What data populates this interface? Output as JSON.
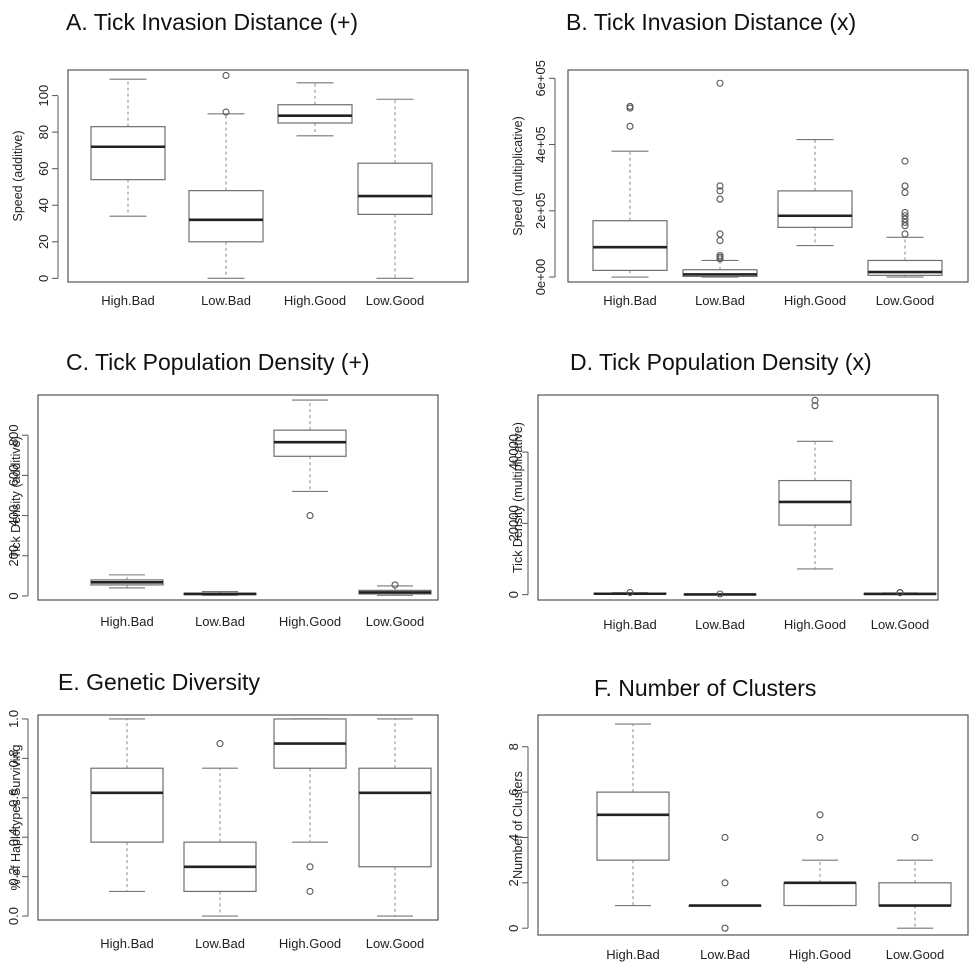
{
  "chart_data": [
    {
      "type": "boxplot",
      "title": "A. Tick Invasion Distance (+)",
      "ylabel": "Speed (additive)",
      "categories": [
        "High.Bad",
        "Low.Bad",
        "High.Good",
        "Low.Good"
      ],
      "yticks": [
        0,
        20,
        40,
        60,
        80,
        100
      ],
      "ytick_labels": [
        "0",
        "20",
        "40",
        "60",
        "80",
        "100"
      ],
      "ylim": [
        -2,
        114
      ],
      "boxes": [
        {
          "lower_whisker": 34,
          "q1": 54,
          "median": 72,
          "q3": 83,
          "upper_whisker": 109,
          "outliers": []
        },
        {
          "lower_whisker": 0,
          "q1": 20,
          "median": 32,
          "q3": 48,
          "upper_whisker": 90,
          "outliers": [
            91,
            111
          ]
        },
        {
          "lower_whisker": 78,
          "q1": 85,
          "median": 89,
          "q3": 95,
          "upper_whisker": 107,
          "outliers": []
        },
        {
          "lower_whisker": 0,
          "q1": 35,
          "median": 45,
          "q3": 63,
          "upper_whisker": 98,
          "outliers": []
        }
      ]
    },
    {
      "type": "boxplot",
      "title": "B. Tick Invasion Distance (x)",
      "ylabel": "Speed (multiplicative)",
      "categories": [
        "High.Bad",
        "Low.Bad",
        "High.Good",
        "Low.Good"
      ],
      "yticks": [
        0,
        200000,
        400000,
        600000
      ],
      "ytick_labels": [
        "0e+00",
        "2e+05",
        "4e+05",
        "6e+05"
      ],
      "ylim": [
        -15000,
        625000
      ],
      "boxes": [
        {
          "lower_whisker": 0,
          "q1": 20000,
          "median": 90000,
          "q3": 170000,
          "upper_whisker": 380000,
          "outliers": [
            455000,
            510000,
            515000
          ]
        },
        {
          "lower_whisker": 0,
          "q1": 2000,
          "median": 8000,
          "q3": 22000,
          "upper_whisker": 50000,
          "outliers": [
            55000,
            60000,
            65000,
            110000,
            130000,
            235000,
            260000,
            275000,
            585000
          ]
        },
        {
          "lower_whisker": 95000,
          "q1": 150000,
          "median": 185000,
          "q3": 260000,
          "upper_whisker": 415000,
          "outliers": []
        },
        {
          "lower_whisker": 0,
          "q1": 5000,
          "median": 15000,
          "q3": 50000,
          "upper_whisker": 120000,
          "outliers": [
            130000,
            155000,
            165000,
            175000,
            185000,
            195000,
            255000,
            275000,
            350000
          ]
        }
      ]
    },
    {
      "type": "boxplot",
      "title": "C. Tick Population Density (+)",
      "ylabel": "Tick Density (additive)",
      "categories": [
        "High.Bad",
        "Low.Bad",
        "High.Good",
        "Low.Good"
      ],
      "yticks": [
        0,
        200,
        400,
        600,
        800
      ],
      "ytick_labels": [
        "0",
        "200",
        "400",
        "600",
        "800"
      ],
      "ylim": [
        -20,
        1000
      ],
      "boxes": [
        {
          "lower_whisker": 40,
          "q1": 55,
          "median": 68,
          "q3": 80,
          "upper_whisker": 105,
          "outliers": []
        },
        {
          "lower_whisker": 3,
          "q1": 7,
          "median": 10,
          "q3": 14,
          "upper_whisker": 22,
          "outliers": []
        },
        {
          "lower_whisker": 520,
          "q1": 695,
          "median": 765,
          "q3": 825,
          "upper_whisker": 975,
          "outliers": [
            400
          ]
        },
        {
          "lower_whisker": 3,
          "q1": 10,
          "median": 18,
          "q3": 28,
          "upper_whisker": 50,
          "outliers": [
            55
          ]
        }
      ]
    },
    {
      "type": "boxplot",
      "title": "D. Tick Population Density (x)",
      "ylabel": "Tick Density (multiplicative)",
      "categories": [
        "High.Bad",
        "Low.Bad",
        "High.Good",
        "Low.Good"
      ],
      "yticks": [
        0,
        20000,
        40000
      ],
      "ytick_labels": [
        "0",
        "20000",
        "40000"
      ],
      "ylim": [
        -1500,
        56000
      ],
      "boxes": [
        {
          "lower_whisker": 80,
          "q1": 150,
          "median": 250,
          "q3": 400,
          "upper_whisker": 550,
          "outliers": [
            600
          ]
        },
        {
          "lower_whisker": 20,
          "q1": 40,
          "median": 60,
          "q3": 90,
          "upper_whisker": 150,
          "outliers": [
            180
          ]
        },
        {
          "lower_whisker": 7200,
          "q1": 19500,
          "median": 26000,
          "q3": 32000,
          "upper_whisker": 43000,
          "outliers": [
            53000,
            54500
          ]
        },
        {
          "lower_whisker": 50,
          "q1": 100,
          "median": 200,
          "q3": 350,
          "upper_whisker": 500,
          "outliers": [
            550,
            600
          ]
        }
      ]
    },
    {
      "type": "boxplot",
      "title": "E. Genetic Diversity",
      "ylabel": "% of Haplotypes Surviving",
      "categories": [
        "High.Bad",
        "Low.Bad",
        "High.Good",
        "Low.Good"
      ],
      "yticks": [
        0.0,
        0.2,
        0.4,
        0.6,
        0.8,
        1.0
      ],
      "ytick_labels": [
        "0.0",
        "0.2",
        "0.4",
        "0.6",
        "0.8",
        "1.0"
      ],
      "ylim": [
        -0.02,
        1.02
      ],
      "boxes": [
        {
          "lower_whisker": 0.125,
          "q1": 0.375,
          "median": 0.625,
          "q3": 0.75,
          "upper_whisker": 1.0,
          "outliers": []
        },
        {
          "lower_whisker": 0.0,
          "q1": 0.125,
          "median": 0.25,
          "q3": 0.375,
          "upper_whisker": 0.75,
          "outliers": [
            0.875
          ]
        },
        {
          "lower_whisker": 0.375,
          "q1": 0.75,
          "median": 0.875,
          "q3": 1.0,
          "upper_whisker": 1.0,
          "outliers": [
            0.25,
            0.125
          ]
        },
        {
          "lower_whisker": 0.0,
          "q1": 0.25,
          "median": 0.625,
          "q3": 0.75,
          "upper_whisker": 1.0,
          "outliers": []
        }
      ]
    },
    {
      "type": "boxplot",
      "title": "F. Number of Clusters",
      "ylabel": "Number of Clusters",
      "categories": [
        "High.Bad",
        "Low.Bad",
        "High.Good",
        "Low.Good"
      ],
      "yticks": [
        0,
        2,
        4,
        6,
        8
      ],
      "ytick_labels": [
        "0",
        "2",
        "4",
        "6",
        "8"
      ],
      "ylim": [
        -0.3,
        9.4
      ],
      "boxes": [
        {
          "lower_whisker": 1,
          "q1": 3,
          "median": 5,
          "q3": 6,
          "upper_whisker": 9,
          "outliers": []
        },
        {
          "lower_whisker": 1,
          "q1": 1,
          "median": 1,
          "q3": 1,
          "upper_whisker": 1,
          "outliers": [
            0,
            2,
            4
          ]
        },
        {
          "lower_whisker": 1,
          "q1": 1,
          "median": 2,
          "q3": 2,
          "upper_whisker": 3,
          "outliers": [
            4,
            5
          ]
        },
        {
          "lower_whisker": 0,
          "q1": 1,
          "median": 1,
          "q3": 2,
          "upper_whisker": 3,
          "outliers": [
            4
          ]
        }
      ]
    }
  ]
}
